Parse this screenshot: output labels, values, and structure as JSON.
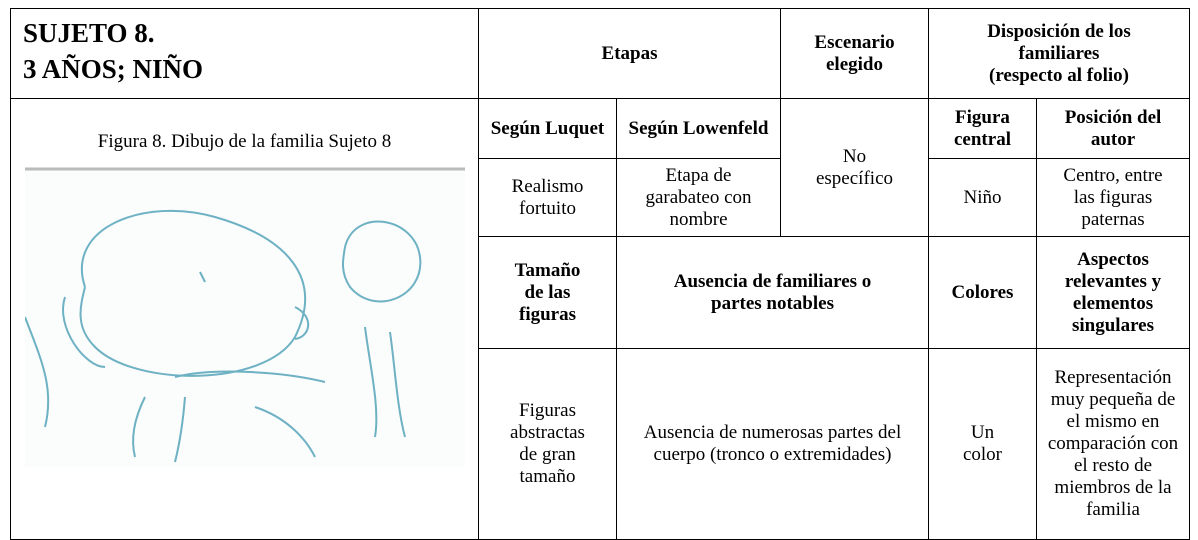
{
  "header": {
    "title_line1": "SUJETO 8.",
    "title_line2": "3 AÑOS; NIÑO",
    "etapas": "Etapas",
    "escenario": "Escenario elegido",
    "disposicion": "Disposición de los familiares",
    "disposicion_note": "(respecto al folio)"
  },
  "figure": {
    "caption": "Figura 8. Dibujo de la familia Sujeto 8"
  },
  "table": {
    "luquet_header": "Según Luquet",
    "lowenfeld_header": "Según Lowenfeld",
    "escenario_value": "No específico",
    "figura_central_header": "Figura central",
    "posicion_header": "Posición del autor",
    "luquet_value": "Realismo fortuito",
    "lowenfeld_value": "Etapa de garabateo con nombre",
    "figura_central_value": "Niño",
    "posicion_value": "Centro, entre las figuras paternas",
    "tamano_header": "Tamaño de las figuras",
    "ausencia_header": "Ausencia de familiares o partes notables",
    "colores_header": "Colores",
    "aspectos_header": "Aspectos relevantes y elementos singulares",
    "tamano_value": "Figuras abstractas de gran tamaño",
    "ausencia_value": "Ausencia de numerosas partes del cuerpo (tronco o extremidades)",
    "colores_value": "Un color",
    "aspectos_value": "Representación muy pequeña de el mismo en comparación con el resto de miembros de la familia"
  }
}
